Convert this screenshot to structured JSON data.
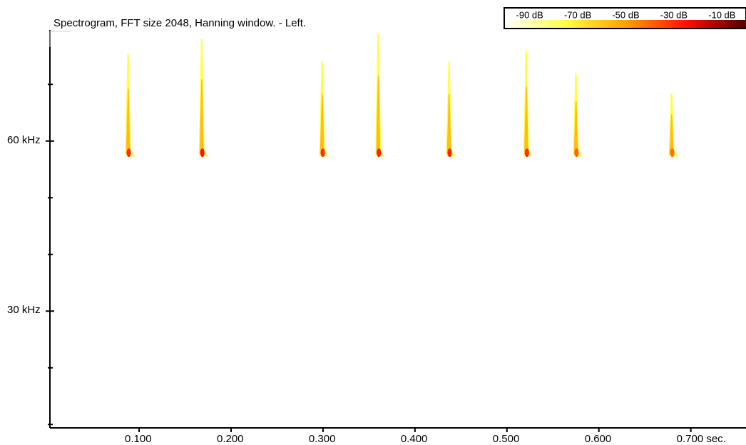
{
  "chart_data": {
    "type": "spectrogram",
    "title": "Spectrogram, FFT size 2048, Hanning window. - Left.",
    "xlim": [
      0.003,
      0.76
    ],
    "xticks": [
      {
        "value": 0.1,
        "label": "0.100"
      },
      {
        "value": 0.2,
        "label": "0.200"
      },
      {
        "value": 0.3,
        "label": "0.300"
      },
      {
        "value": 0.4,
        "label": "0.400"
      },
      {
        "value": 0.5,
        "label": "0.500"
      },
      {
        "value": 0.6,
        "label": "0.600"
      },
      {
        "value": 0.7,
        "label": "0.700 sec."
      }
    ],
    "ylim": [
      9.4,
      79.6
    ],
    "yticks": [
      {
        "value": 30,
        "label": "30 kHz"
      },
      {
        "value": 60,
        "label": "60 kHz"
      }
    ],
    "yminorticks": [
      10,
      20,
      40,
      50,
      70
    ],
    "colormap": [
      "#ffffff",
      "#ffff40",
      "#ffa000",
      "#ff1000",
      "#500000"
    ],
    "colorbar": {
      "lim": [
        -100,
        0
      ],
      "ticks": [
        {
          "value": -90,
          "label": "-90 dB"
        },
        {
          "value": -70,
          "label": "-70 dB"
        },
        {
          "value": -50,
          "label": "-50 dB"
        },
        {
          "value": -30,
          "label": "-30 dB"
        },
        {
          "value": -10,
          "label": "-10 dB"
        }
      ]
    },
    "calls": [
      {
        "time": 0.088,
        "fstart": 75.4,
        "fend": 57.7,
        "peak_db": -30
      },
      {
        "time": 0.168,
        "fstart": 78,
        "fend": 57.7,
        "peak_db": -25
      },
      {
        "time": 0.299,
        "fstart": 74,
        "fend": 57.7,
        "peak_db": -30
      },
      {
        "time": 0.36,
        "fstart": 79,
        "fend": 57.7,
        "peak_db": -28
      },
      {
        "time": 0.437,
        "fstart": 74,
        "fend": 57.7,
        "peak_db": -28
      },
      {
        "time": 0.521,
        "fstart": 76,
        "fend": 57.7,
        "peak_db": -30
      },
      {
        "time": 0.575,
        "fstart": 72,
        "fend": 57.7,
        "peak_db": -40
      },
      {
        "time": 0.679,
        "fstart": 68.5,
        "fend": 57.7,
        "peak_db": -42
      }
    ]
  }
}
